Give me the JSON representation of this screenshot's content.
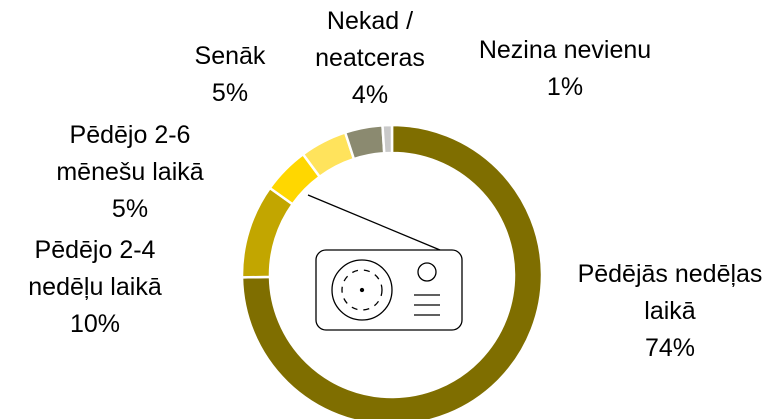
{
  "chart_data": {
    "type": "donut",
    "categories": [
      "Pēdējās nedēļas laikā",
      "Pēdējo 2-4 nedēļu laikā",
      "Pēdējo 2-6 mēnešu laikā",
      "Senāk",
      "Nekad / neatceras",
      "Nezina nevienu"
    ],
    "values": [
      74,
      10,
      5,
      5,
      4,
      1
    ],
    "value_labels": [
      "74%",
      "10%",
      "5%",
      "5%",
      "4%",
      "1%"
    ],
    "colors": [
      "#7f6e00",
      "#c2a600",
      "#ffd700",
      "#ffe35c",
      "#8b8a70",
      "#c9c9c9"
    ]
  }
}
